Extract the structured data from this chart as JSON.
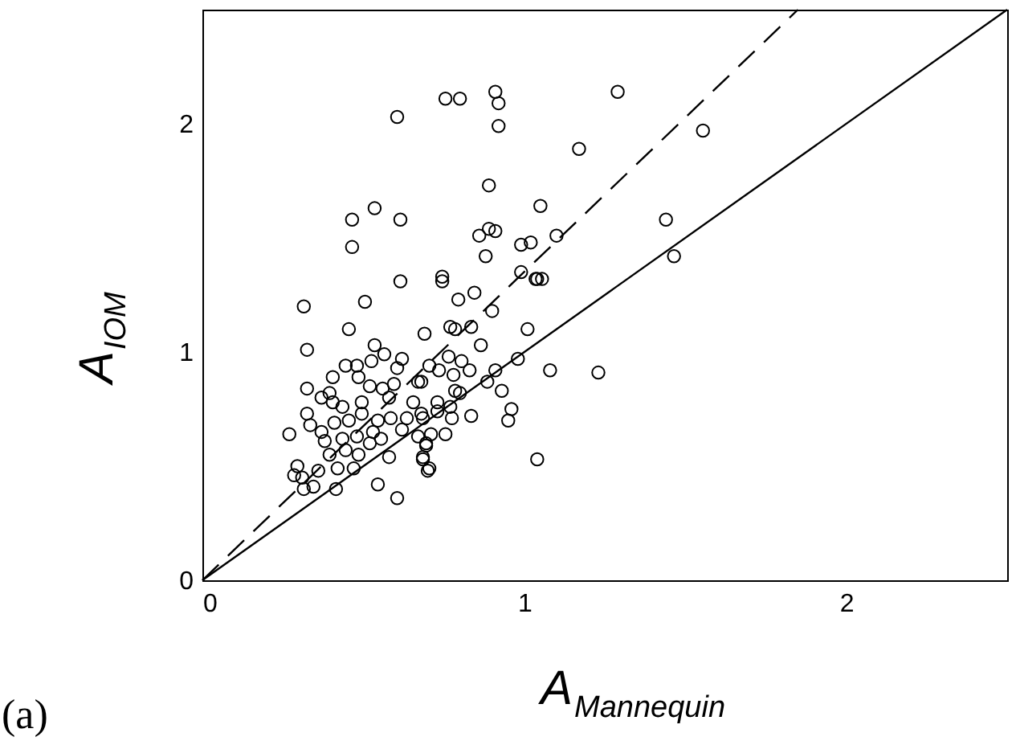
{
  "chart_data": {
    "type": "scatter",
    "xlabel": "A$_{Mannequin}$",
    "ylabel": "A$_{IOM}$",
    "xlim": [
      0,
      2.5
    ],
    "ylim": [
      0,
      2.5
    ],
    "xticks": [
      0,
      1,
      2
    ],
    "yticks": [
      0,
      1,
      2
    ],
    "grid": false,
    "annotations": [
      "(a)"
    ],
    "series": [
      {
        "color": "#000000",
        "marker": "circle",
        "x": [
          0.615,
          0.315,
          0.505,
          0.455,
          0.325,
          0.69,
          0.535,
          0.565,
          0.445,
          0.48,
          0.62,
          0.525,
          0.605,
          0.485,
          0.325,
          0.395,
          0.52,
          0.56,
          0.595,
          0.67,
          0.655,
          0.58,
          0.495,
          0.405,
          0.435,
          0.325,
          0.27,
          0.335,
          0.37,
          0.41,
          0.455,
          0.495,
          0.545,
          0.585,
          0.635,
          0.68,
          0.38,
          0.435,
          0.48,
          0.52,
          0.555,
          0.395,
          0.445,
          0.485,
          0.58,
          0.67,
          0.695,
          0.685,
          0.295,
          0.285,
          0.31,
          0.36,
          0.42,
          0.47,
          0.315,
          0.345,
          0.415,
          0.545,
          0.605,
          0.7,
          0.405,
          0.37,
          0.62,
          0.53,
          0.745,
          1.055,
          1.04,
          0.795,
          0.845,
          0.9,
          0.77,
          0.785,
          0.835,
          1.01,
          0.865,
          0.765,
          0.805,
          0.705,
          0.735,
          0.78,
          0.83,
          0.98,
          0.91,
          1.08,
          0.885,
          0.93,
          0.68,
          0.785,
          0.8,
          0.73,
          0.77,
          0.73,
          0.775,
          0.685,
          0.835,
          0.96,
          0.95,
          0.755,
          0.71,
          0.695,
          0.685,
          0.705,
          1.04,
          0.605,
          0.755,
          0.8,
          0.91,
          0.92,
          0.92,
          0.89,
          0.465,
          0.535,
          0.615,
          0.465,
          0.86,
          0.89,
          0.91,
          0.88,
          0.745,
          1.29,
          1.555,
          1.17,
          1.05,
          1.1,
          1.44,
          1.465,
          0.99,
          1.02,
          0.99,
          1.035,
          1.23
        ],
        "values": [
          1.31,
          1.2,
          1.22,
          1.1,
          1.01,
          1.08,
          1.03,
          0.99,
          0.94,
          0.94,
          0.97,
          0.96,
          0.93,
          0.89,
          0.84,
          0.82,
          0.85,
          0.84,
          0.86,
          0.87,
          0.78,
          0.8,
          0.78,
          0.78,
          0.76,
          0.73,
          0.64,
          0.68,
          0.65,
          0.69,
          0.7,
          0.73,
          0.7,
          0.71,
          0.71,
          0.73,
          0.61,
          0.62,
          0.63,
          0.6,
          0.62,
          0.55,
          0.57,
          0.55,
          0.54,
          0.63,
          0.59,
          0.54,
          0.5,
          0.46,
          0.45,
          0.48,
          0.49,
          0.49,
          0.4,
          0.41,
          0.4,
          0.42,
          0.36,
          0.48,
          0.89,
          0.8,
          0.66,
          0.65,
          1.31,
          1.32,
          1.32,
          1.23,
          1.26,
          1.18,
          1.11,
          1.1,
          1.11,
          1.1,
          1.03,
          0.98,
          0.96,
          0.94,
          0.92,
          0.9,
          0.92,
          0.97,
          0.92,
          0.92,
          0.87,
          0.83,
          0.87,
          0.83,
          0.82,
          0.78,
          0.76,
          0.74,
          0.71,
          0.71,
          0.72,
          0.75,
          0.7,
          0.64,
          0.64,
          0.6,
          0.53,
          0.49,
          0.53,
          2.03,
          2.11,
          2.11,
          2.14,
          2.09,
          1.99,
          1.73,
          1.58,
          1.63,
          1.58,
          1.46,
          1.51,
          1.54,
          1.53,
          1.42,
          1.33,
          2.14,
          1.97,
          1.89,
          1.64,
          1.51,
          1.58,
          1.42,
          1.47,
          1.48,
          1.35,
          1.32,
          0.91
        ]
      },
      {
        "type": "line",
        "color": "#000000",
        "line_style": "solid",
        "x": [
          0,
          2.5
        ],
        "values": [
          0,
          2.5
        ]
      },
      {
        "type": "line",
        "color": "#000000",
        "line_style": "dashed",
        "x": [
          0,
          1.85
        ],
        "values": [
          0,
          2.5
        ]
      }
    ]
  }
}
